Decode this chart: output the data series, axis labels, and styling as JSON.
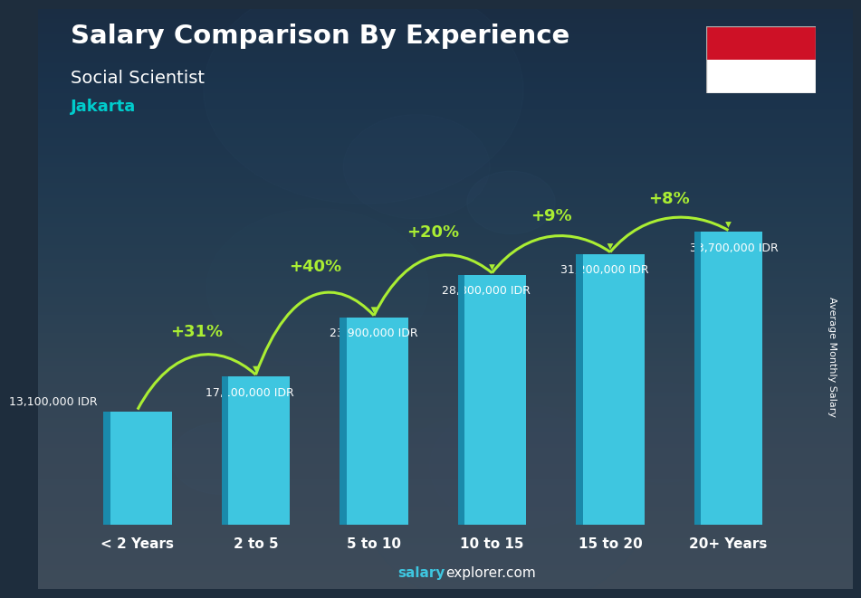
{
  "title": "Salary Comparison By Experience",
  "subtitle": "Social Scientist",
  "city": "Jakarta",
  "ylabel": "Average Monthly Salary",
  "footer_bold": "salary",
  "footer_regular": "explorer.com",
  "categories": [
    "< 2 Years",
    "2 to 5",
    "5 to 10",
    "10 to 15",
    "15 to 20",
    "20+ Years"
  ],
  "values": [
    13100000,
    17100000,
    23900000,
    28800000,
    31200000,
    33700000
  ],
  "value_labels": [
    "13,100,000 IDR",
    "17,100,000 IDR",
    "23,900,000 IDR",
    "28,800,000 IDR",
    "31,200,000 IDR",
    "33,700,000 IDR"
  ],
  "pct_labels": [
    "+31%",
    "+40%",
    "+20%",
    "+9%",
    "+8%"
  ],
  "bar_color_light": "#3ec6e0",
  "bar_color_dark": "#1a8aab",
  "bg_color": "#1e2d3d",
  "title_color": "#ffffff",
  "subtitle_color": "#ffffff",
  "city_color": "#00cccc",
  "pct_color": "#aaee33",
  "value_color": "#ffffff",
  "arrow_color": "#aaee33",
  "footer_bold_color": "#3ec6e0",
  "footer_regular_color": "#ffffff",
  "flag_red": "#CE1126",
  "flag_white": "#FFFFFF",
  "ylim_max": 40000000,
  "bar_width": 0.58
}
